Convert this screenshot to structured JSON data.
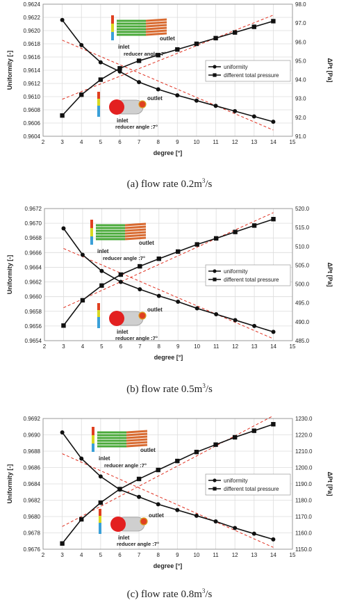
{
  "chart_data": [
    {
      "type": "line",
      "caption_prefix": "(a)  flow rate  0.2m",
      "caption_sup": "3",
      "caption_suffix": "/s",
      "xlabel": "degree [°]",
      "ylabel_left": "Uniformity [-]",
      "ylabel_right": "ΔPt [Pa]",
      "xlim": [
        2,
        15
      ],
      "x_ticks": [
        2,
        3,
        4,
        5,
        6,
        7,
        8,
        9,
        10,
        11,
        12,
        13,
        14,
        15
      ],
      "ylim_left": [
        0.9604,
        0.9624
      ],
      "y_ticks_left": [
        "0.9604",
        "0.9606",
        "0.9608",
        "0.9610",
        "0.9612",
        "0.9614",
        "0.9616",
        "0.9618",
        "0.9620",
        "0.9622",
        "0.9624"
      ],
      "ylim_right": [
        91.0,
        98.0
      ],
      "y_ticks_right": [
        "91.0",
        "92.0",
        "93.0",
        "94.0",
        "95.0",
        "96.0",
        "97.0",
        "98.0"
      ],
      "legend_position": "center-right",
      "grid": true,
      "series": [
        {
          "name": "uniformity",
          "axis": "left",
          "marker": "circle",
          "x": [
            3,
            4,
            5,
            6,
            7,
            8,
            9,
            10,
            11,
            12,
            13,
            14
          ],
          "y": [
            0.96216,
            0.96178,
            0.96152,
            0.96138,
            0.96122,
            0.96111,
            0.96102,
            0.96094,
            0.96086,
            0.96078,
            0.9607,
            0.96062
          ]
        },
        {
          "name": "different total pressure",
          "axis": "right",
          "marker": "square",
          "x": [
            3,
            4,
            5,
            6,
            7,
            8,
            9,
            10,
            11,
            12,
            13,
            14
          ],
          "y": [
            92.1,
            93.2,
            94.0,
            94.6,
            95.0,
            95.3,
            95.6,
            95.9,
            96.2,
            96.5,
            96.8,
            97.1
          ]
        }
      ],
      "inset_labels": {
        "inlet": "inlet",
        "outlet": "outlet",
        "reducer": "reducer angle :7°"
      }
    },
    {
      "type": "line",
      "caption_prefix": "(b)  flow rate  0.5m",
      "caption_sup": "3",
      "caption_suffix": "/s",
      "xlabel": "degree [°]",
      "ylabel_left": "Uniformity [-]",
      "ylabel_right": "ΔPt [Pa]",
      "xlim": [
        2,
        15
      ],
      "x_ticks": [
        2,
        3,
        4,
        5,
        6,
        7,
        8,
        9,
        10,
        11,
        12,
        13,
        14,
        15
      ],
      "ylim_left": [
        0.9654,
        0.9672
      ],
      "y_ticks_left": [
        "0.9654",
        "0.9656",
        "0.9658",
        "0.9660",
        "0.9662",
        "0.9664",
        "0.9666",
        "0.9668",
        "0.9670",
        "0.9672"
      ],
      "ylim_right": [
        485.0,
        520.0
      ],
      "y_ticks_right": [
        "485.0",
        "490.0",
        "495.0",
        "500.0",
        "505.0",
        "510.0",
        "515.0",
        "520.0"
      ],
      "legend_position": "center-right",
      "grid": true,
      "series": [
        {
          "name": "uniformity",
          "axis": "left",
          "marker": "circle",
          "x": [
            3,
            4,
            5,
            6,
            7,
            8,
            9,
            10,
            11,
            12,
            13,
            14
          ],
          "y": [
            0.96693,
            0.96657,
            0.96635,
            0.9662,
            0.9661,
            0.96601,
            0.96593,
            0.96584,
            0.96576,
            0.96568,
            0.9656,
            0.96552
          ]
        },
        {
          "name": "different total pressure",
          "axis": "right",
          "marker": "square",
          "x": [
            3,
            4,
            5,
            6,
            7,
            8,
            9,
            10,
            11,
            12,
            13,
            14
          ],
          "y": [
            489.0,
            495.7,
            499.6,
            502.5,
            504.7,
            506.7,
            508.6,
            510.5,
            512.1,
            513.8,
            515.5,
            517.2
          ]
        }
      ],
      "inset_labels": {
        "inlet": "inlet",
        "outlet": "outlet",
        "reducer": "reducer angle :7°"
      }
    },
    {
      "type": "line",
      "caption_prefix": "(c)  flow rate  0.8m",
      "caption_sup": "3",
      "caption_suffix": "/s",
      "xlabel": "degree [°]",
      "ylabel_left": "Uniformity [-]",
      "ylabel_right": "ΔPt [Pa]",
      "xlim": [
        2,
        15
      ],
      "x_ticks": [
        2,
        3,
        4,
        5,
        6,
        7,
        8,
        9,
        10,
        11,
        12,
        13,
        14,
        15
      ],
      "ylim_left": [
        0.9676,
        0.9692
      ],
      "y_ticks_left": [
        "0.9676",
        "0.9678",
        "0.9680",
        "0.9682",
        "0.9684",
        "0.9686",
        "0.9688",
        "0.9690",
        "0.9692"
      ],
      "ylim_right": [
        1150.0,
        1230.0
      ],
      "y_ticks_right": [
        "1150.0",
        "1160.0",
        "1170.0",
        "1180.0",
        "1190.0",
        "1200.0",
        "1210.0",
        "1220.0",
        "1230.0"
      ],
      "legend_position": "center-right",
      "grid": true,
      "series": [
        {
          "name": "uniformity",
          "axis": "left",
          "marker": "circle",
          "x": [
            3,
            4,
            5,
            6,
            7,
            8,
            9,
            10,
            11,
            12,
            13,
            14
          ],
          "y": [
            0.96903,
            0.96871,
            0.96849,
            0.96833,
            0.96824,
            0.96815,
            0.96808,
            0.96801,
            0.96794,
            0.96786,
            0.96779,
            0.96772
          ]
        },
        {
          "name": "different total pressure",
          "axis": "right",
          "marker": "square",
          "x": [
            3,
            4,
            5,
            6,
            7,
            8,
            9,
            10,
            11,
            12,
            13,
            14
          ],
          "y": [
            1153.5,
            1168.3,
            1178.5,
            1186.8,
            1193.0,
            1198.5,
            1204.0,
            1209.5,
            1214.0,
            1218.5,
            1222.5,
            1226.5
          ]
        }
      ],
      "inset_labels": {
        "inlet": "inlet",
        "outlet": "outlet",
        "reducer": "reducer angle :7°"
      }
    }
  ]
}
